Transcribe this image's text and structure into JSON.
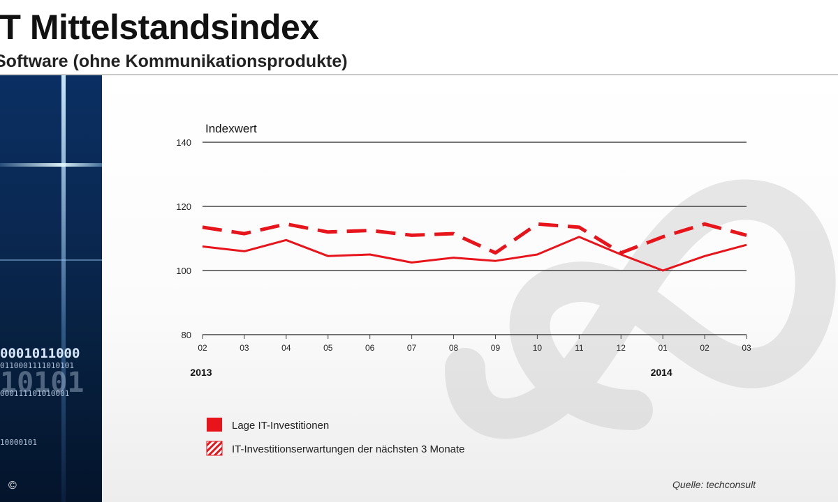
{
  "header": {
    "title": "IT Mittelstandsindex",
    "subtitle": "Software (ohne Kommunikationsprodukte)"
  },
  "sidebar": {
    "binary_lines": [
      "0001011000",
      "0110001111010101",
      "10101",
      "000111101010001",
      "10000101"
    ],
    "copyright": "©"
  },
  "colors": {
    "series": "#e8141b",
    "grid": "#222222",
    "sidebar": "#0a2852"
  },
  "source": "Quelle:  techconsult",
  "chart_data": {
    "type": "line",
    "ylabel": "Indexwert",
    "ylim": [
      80,
      140
    ],
    "yticks": [
      80,
      100,
      120,
      140
    ],
    "grid": "horizontal",
    "categories": [
      "02",
      "03",
      "04",
      "05",
      "06",
      "07",
      "08",
      "09",
      "10",
      "11",
      "12",
      "01",
      "02",
      "03"
    ],
    "year_labels": [
      {
        "index": 0,
        "label": "2013"
      },
      {
        "index": 11,
        "label": "2014"
      }
    ],
    "legend_position": "bottom-left",
    "series": [
      {
        "name": "Lage IT-Investitionen",
        "style": "solid",
        "values": [
          107.5,
          106,
          109.5,
          104.5,
          105,
          102.5,
          104,
          103,
          105,
          110.5,
          105,
          100,
          104.5,
          108
        ]
      },
      {
        "name": "IT-Investitionserwartungen  der nächsten 3 Monate",
        "style": "dashed",
        "values": [
          113.5,
          111.5,
          114.5,
          112,
          112.5,
          111,
          111.5,
          105.5,
          114.5,
          113.5,
          105.5,
          110.5,
          114.5,
          111
        ]
      }
    ]
  }
}
